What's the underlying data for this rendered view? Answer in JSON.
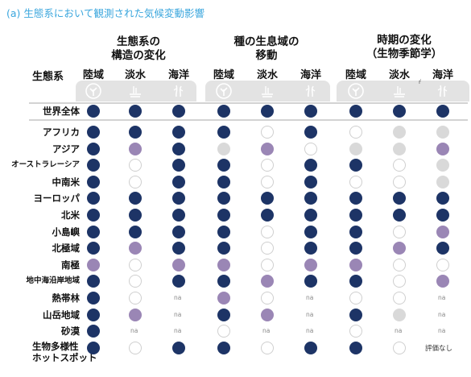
{
  "title": "(a)  生態系において観測された気候変動影響",
  "groups": [
    {
      "l1": "生態系の",
      "l2": "構造の変化"
    },
    {
      "l1": "種の生息域の",
      "l2": "移動"
    },
    {
      "l1": "時期の変化",
      "l2": "（生物季節学）"
    }
  ],
  "row_header": "生態系",
  "col_labels": [
    "陸域",
    "淡水",
    "海洋"
  ],
  "icons": [
    "land-icon",
    "freshwater-icon",
    "ocean-icon"
  ],
  "colors": {
    "dark": "#1d3466",
    "purple": "#9a86b5",
    "grey": "#d9d9d9",
    "white": "#ffffff",
    "band": "#e3e3e3",
    "title": "#3aa6dd"
  },
  "na_label": "na",
  "tick_mark": "ŕ",
  "note": "評価なし",
  "global_row": {
    "label": "世界全体",
    "cells": [
      "d",
      "d",
      "d",
      "d",
      "d",
      "d",
      "d",
      "d",
      "d"
    ]
  },
  "rows": [
    {
      "label": "アフリカ",
      "cells": [
        "d",
        "d",
        "d",
        "d",
        "w",
        "d",
        "w",
        "g",
        "g"
      ]
    },
    {
      "label": "アジア",
      "cells": [
        "d",
        "p",
        "d",
        "g",
        "p",
        "w",
        "g",
        "g",
        "p"
      ]
    },
    {
      "label": "オーストラレーシア",
      "small": true,
      "cells": [
        "d",
        "w",
        "d",
        "d",
        "w",
        "d",
        "d",
        "w",
        "g"
      ]
    },
    {
      "label": "中南米",
      "cells": [
        "d",
        "w",
        "d",
        "d",
        "w",
        "d",
        "w",
        "w",
        "g"
      ]
    },
    {
      "label": "ヨーロッパ",
      "cells": [
        "d",
        "d",
        "d",
        "d",
        "d",
        "d",
        "d",
        "d",
        "d"
      ]
    },
    {
      "label": "北米",
      "cells": [
        "d",
        "d",
        "d",
        "d",
        "d",
        "d",
        "d",
        "d",
        "d"
      ]
    },
    {
      "label": "小島嶼",
      "cells": [
        "d",
        "d",
        "d",
        "d",
        "w",
        "d",
        "d",
        "w",
        "p"
      ]
    },
    {
      "label": "北極域",
      "cells": [
        "d",
        "p",
        "d",
        "d",
        "w",
        "d",
        "d",
        "p",
        "d"
      ]
    },
    {
      "label": "南極",
      "cells": [
        "p",
        "w",
        "p",
        "p",
        "w",
        "p",
        "p",
        "w",
        "w"
      ]
    },
    {
      "label": "地中海沿岸地域",
      "small": true,
      "cells": [
        "d",
        "w",
        "d",
        "d",
        "p",
        "d",
        "d",
        "w",
        "p"
      ]
    },
    {
      "label": "熱帯林",
      "cells": [
        "d",
        "w",
        "na",
        "p",
        "w",
        "na",
        "w",
        "w",
        "na"
      ]
    },
    {
      "label": "山岳地域",
      "cells": [
        "d",
        "p",
        "na",
        "d",
        "p",
        "na",
        "d",
        "g",
        "na"
      ]
    },
    {
      "label": "砂漠",
      "cells": [
        "d",
        "na",
        "na",
        "w",
        "na",
        "na",
        "w",
        "na",
        "na"
      ]
    },
    {
      "label": "生物多様性\nホットスポット",
      "cells": [
        "d",
        "w",
        "d",
        "d",
        "w",
        "d",
        "d",
        "w",
        "note"
      ]
    }
  ]
}
